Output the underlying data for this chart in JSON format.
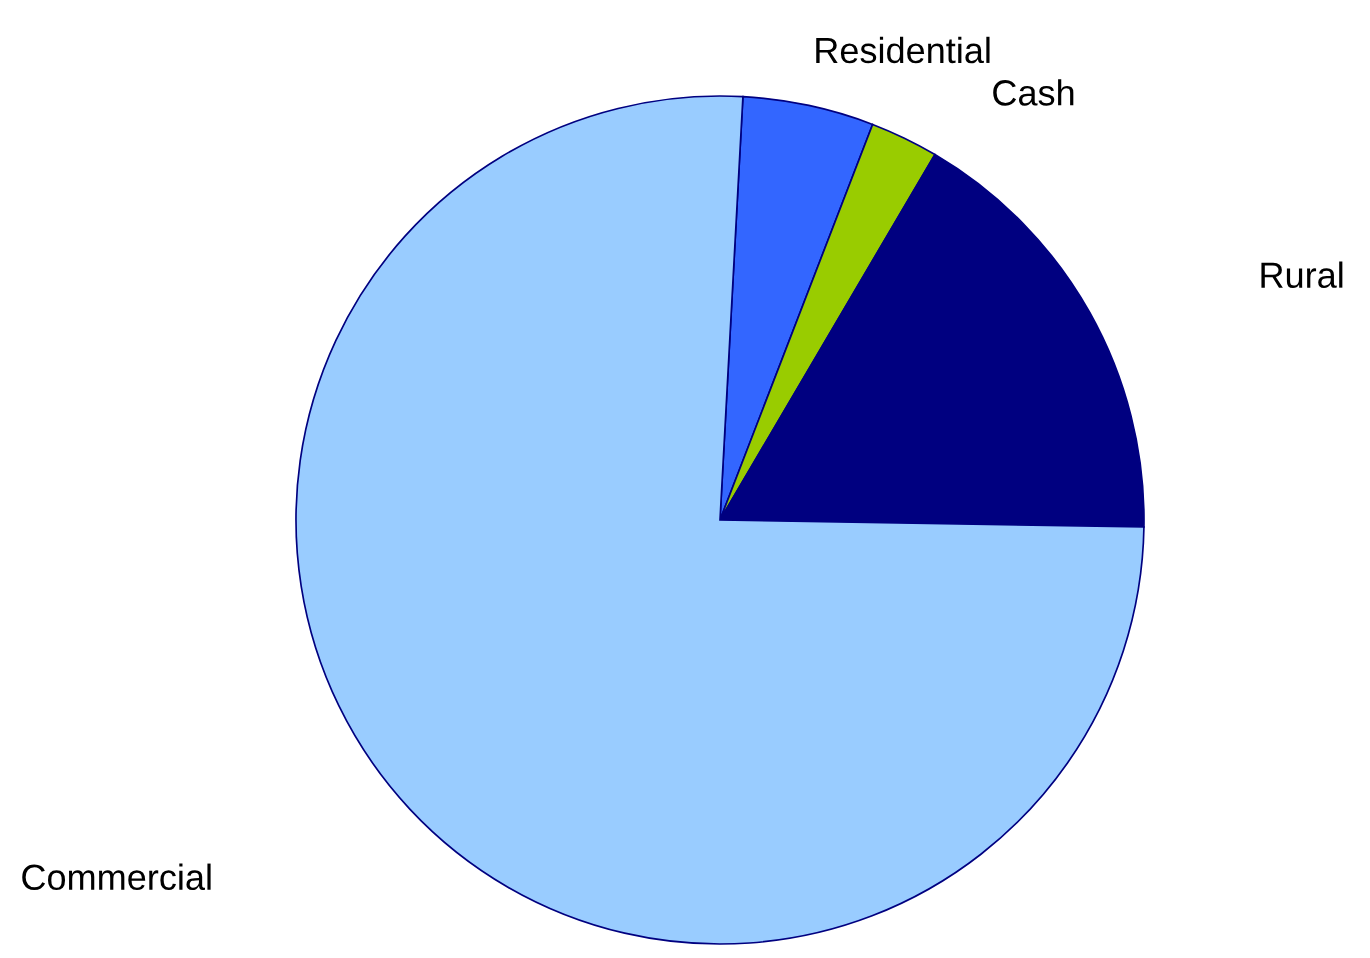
{
  "chart_data": {
    "type": "pie",
    "categories": [
      "Residential",
      "Cash",
      "Rural",
      "Commercial"
    ],
    "values": [
      5.0,
      2.6,
      16.8,
      75.6
    ],
    "colors": [
      "#3366ff",
      "#99cc00",
      "#000080",
      "#99ccff"
    ]
  }
}
